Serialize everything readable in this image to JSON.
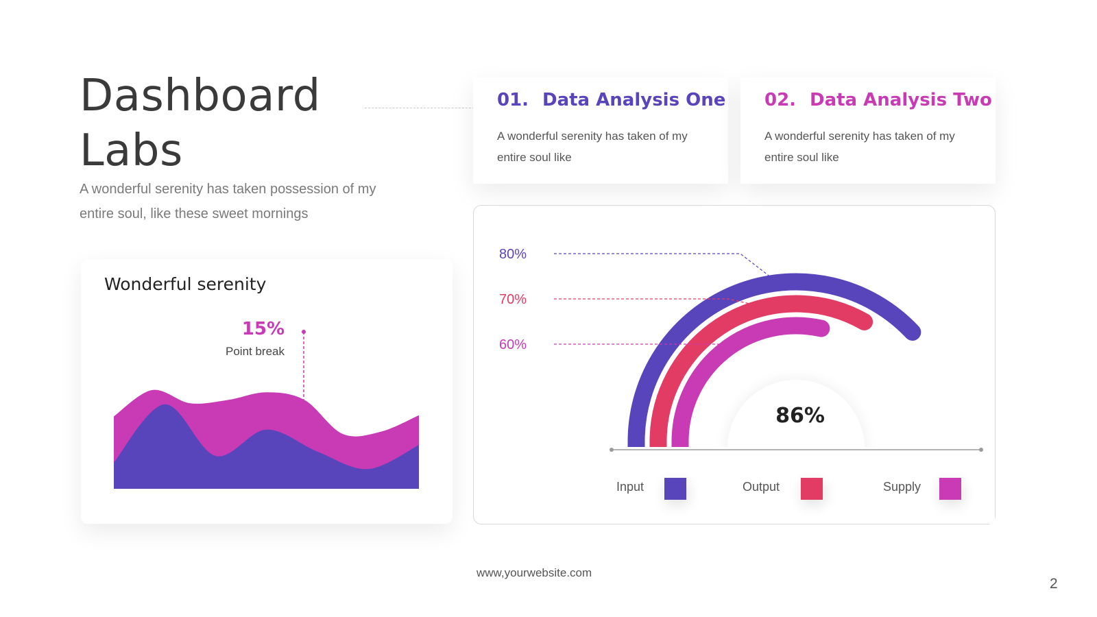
{
  "header": {
    "title_line1": "Dashboard",
    "title_line2": "Labs",
    "subtitle": "A wonderful serenity has taken possession of my entire soul, like these sweet mornings"
  },
  "cards": [
    {
      "number": "01.",
      "title": "Data Analysis One",
      "text": "A wonderful serenity has taken of my entire soul like",
      "color": "#5945bb"
    },
    {
      "number": "02.",
      "title": "Data Analysis Two",
      "text": "A wonderful serenity has taken of my entire soul like",
      "color": "#c83bb5"
    }
  ],
  "chart_data": [
    {
      "type": "area",
      "title": "Wonderful serenity",
      "series": [
        {
          "values": [
            0.66,
            0.9,
            0.78,
            0.81,
            0.88,
            0.81,
            0.5,
            0.52,
            0.67
          ],
          "color": "#c83bb5"
        },
        {
          "values": [
            0.24,
            0.77,
            0.3,
            0.54,
            0.34,
            0.18,
            0.4
          ],
          "color": "#5945bb"
        }
      ],
      "annotation": {
        "value": "15%",
        "label": "Point break",
        "color": "#c83bb5"
      }
    },
    {
      "type": "gauge",
      "center_value": "86%",
      "series": [
        {
          "name": "Input",
          "value": 80,
          "label": "80%",
          "color": "#5945bb"
        },
        {
          "name": "Output",
          "value": 70,
          "label": "70%",
          "color": "#e33c64"
        },
        {
          "name": "Supply",
          "value": 60,
          "label": "60%",
          "color": "#c83bb5"
        }
      ]
    }
  ],
  "footer": {
    "website": "www,yourwebsite.com",
    "page_number": "2"
  }
}
